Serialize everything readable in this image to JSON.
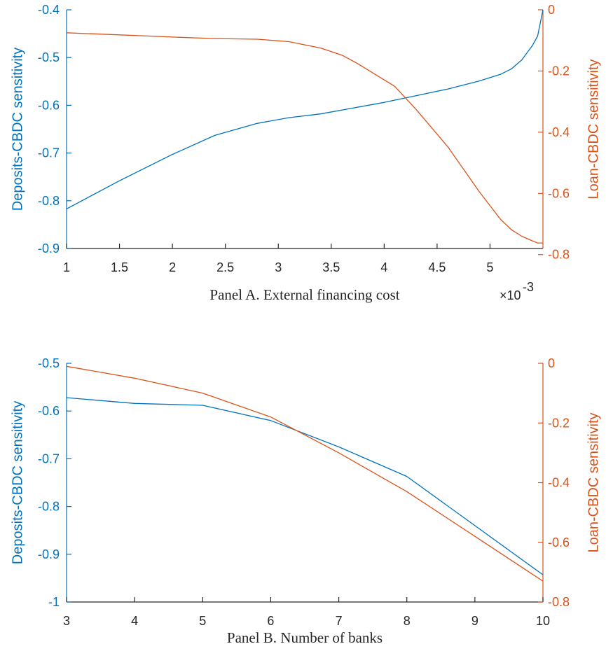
{
  "colors": {
    "left_axis": "#0072bd",
    "right_axis": "#d95319",
    "axis": "#262626"
  },
  "chart_data": [
    {
      "type": "line",
      "panel": "A",
      "xlabel": "Panel A. External financing cost",
      "x_multiplier_label": "×10",
      "x_multiplier_exponent": "-3",
      "ylabel_left": "Deposits-CBDC sensitivity",
      "ylabel_right": "Loan-CBDC sensitivity",
      "xlim": [
        1,
        5.5
      ],
      "ylim_left": [
        -0.9,
        -0.4
      ],
      "ylim_right": [
        -0.78,
        0
      ],
      "x_ticks": [
        1,
        1.5,
        2,
        2.5,
        3,
        3.5,
        4,
        4.5,
        5
      ],
      "x_tick_labels": [
        "1",
        "1.5",
        "2",
        "2.5",
        "3",
        "3.5",
        "4",
        "4.5",
        "5"
      ],
      "y_left_ticks": [
        -0.9,
        -0.8,
        -0.7,
        -0.6,
        -0.5,
        -0.4
      ],
      "y_left_tick_labels": [
        "-0.9",
        "-0.8",
        "-0.7",
        "-0.6",
        "-0.5",
        "-0.4"
      ],
      "y_right_ticks": [
        -0.8,
        -0.6,
        -0.4,
        -0.2,
        0
      ],
      "y_right_tick_labels": [
        "-0.8",
        "-0.6",
        "-0.4",
        "-0.2",
        "0"
      ],
      "series": [
        {
          "axis": "left",
          "x": [
            1,
            1.5,
            2,
            2.4,
            2.8,
            3.1,
            3.4,
            3.7,
            4.0,
            4.3,
            4.6,
            4.9,
            5.1,
            5.2,
            5.3,
            5.4,
            5.45,
            5.5
          ],
          "y": [
            -0.817,
            -0.758,
            -0.703,
            -0.663,
            -0.638,
            -0.626,
            -0.618,
            -0.606,
            -0.594,
            -0.58,
            -0.566,
            -0.549,
            -0.535,
            -0.524,
            -0.505,
            -0.475,
            -0.455,
            -0.4
          ]
        },
        {
          "axis": "right",
          "x": [
            1,
            1.5,
            2,
            2.4,
            2.8,
            3.1,
            3.4,
            3.6,
            3.75,
            4.1,
            4.3,
            4.6,
            4.9,
            5.1,
            5.2,
            5.3,
            5.4,
            5.45,
            5.5
          ],
          "y": [
            -0.075,
            -0.082,
            -0.089,
            -0.094,
            -0.096,
            -0.104,
            -0.125,
            -0.148,
            -0.176,
            -0.25,
            -0.325,
            -0.447,
            -0.595,
            -0.685,
            -0.718,
            -0.74,
            -0.755,
            -0.762,
            -0.762
          ]
        }
      ]
    },
    {
      "type": "line",
      "panel": "B",
      "xlabel": "Panel B. Number of banks",
      "ylabel_left": "Deposits-CBDC sensitivity",
      "ylabel_right": "Loan-CBDC sensitivity",
      "xlim": [
        3,
        10
      ],
      "ylim_left": [
        -1,
        -0.5
      ],
      "ylim_right": [
        -0.8,
        0
      ],
      "x_ticks": [
        3,
        4,
        5,
        6,
        7,
        8,
        9,
        10
      ],
      "x_tick_labels": [
        "3",
        "4",
        "5",
        "6",
        "7",
        "8",
        "9",
        "10"
      ],
      "y_left_ticks": [
        -1,
        -0.9,
        -0.8,
        -0.7,
        -0.6,
        -0.5
      ],
      "y_left_tick_labels": [
        "-1",
        "-0.9",
        "-0.8",
        "-0.7",
        "-0.6",
        "-0.5"
      ],
      "y_right_ticks": [
        -0.8,
        -0.6,
        -0.4,
        -0.2,
        0
      ],
      "y_right_tick_labels": [
        "-0.8",
        "-0.6",
        "-0.4",
        "-0.2",
        "0"
      ],
      "series": [
        {
          "axis": "left",
          "x": [
            3,
            4,
            5,
            6,
            7,
            8,
            9,
            10
          ],
          "y": [
            -0.572,
            -0.584,
            -0.588,
            -0.62,
            -0.675,
            -0.737,
            -0.84,
            -0.943
          ]
        },
        {
          "axis": "right",
          "x": [
            3,
            4,
            5,
            6,
            7,
            8,
            9,
            10
          ],
          "y": [
            -0.01,
            -0.05,
            -0.1,
            -0.18,
            -0.3,
            -0.43,
            -0.58,
            -0.73
          ]
        }
      ]
    }
  ]
}
